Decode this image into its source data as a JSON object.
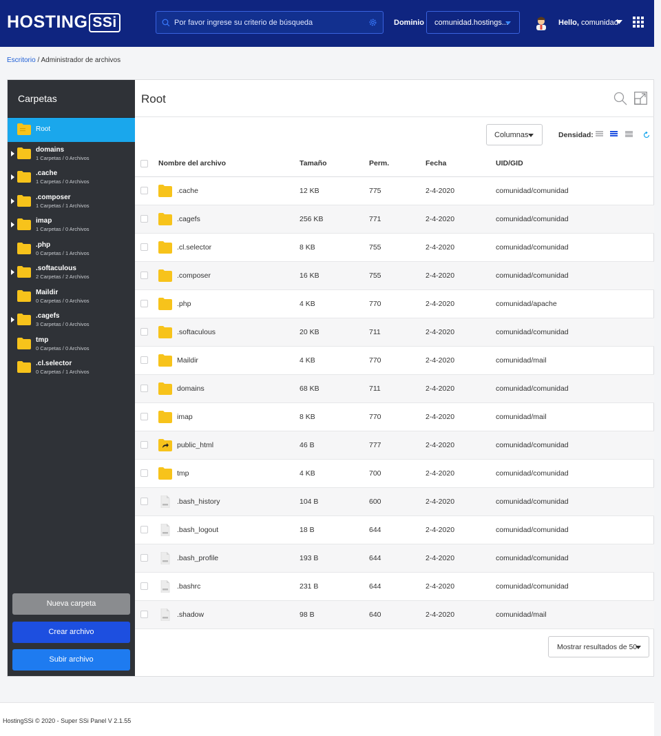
{
  "header": {
    "logo_text": "HOSTING",
    "logo_badge": "SSi",
    "search_placeholder": "Por favor ingrese su criterio de búsqueda",
    "domain_label": "Dominio",
    "domain_value": "comunidad.hostings...",
    "hello_prefix": "Hello,",
    "hello_user": "comunidad"
  },
  "breadcrumb": {
    "home": "Escritorio",
    "separator": " / ",
    "current": "Administrador de archivos"
  },
  "sidebar": {
    "title": "Carpetas",
    "root_label": "Root",
    "items": [
      {
        "name": "domains",
        "sub": "1 Carpetas / 0 Archivos",
        "expandable": true
      },
      {
        "name": ".cache",
        "sub": "1 Carpetas / 0 Archivos",
        "expandable": true
      },
      {
        "name": ".composer",
        "sub": "1 Carpetas / 1 Archivos",
        "expandable": true
      },
      {
        "name": "imap",
        "sub": "1 Carpetas / 0 Archivos",
        "expandable": true
      },
      {
        "name": ".php",
        "sub": "0 Carpetas / 1 Archivos",
        "expandable": false
      },
      {
        "name": ".softaculous",
        "sub": "2 Carpetas / 2 Archivos",
        "expandable": true
      },
      {
        "name": "Maildir",
        "sub": "0 Carpetas / 0 Archivos",
        "expandable": false
      },
      {
        "name": ".cagefs",
        "sub": "3 Carpetas / 0 Archivos",
        "expandable": true
      },
      {
        "name": "tmp",
        "sub": "0 Carpetas / 0 Archivos",
        "expandable": false
      },
      {
        "name": ".cl.selector",
        "sub": "0 Carpetas / 1 Archivos",
        "expandable": false
      }
    ],
    "buttons": {
      "new_folder": "Nueva carpeta",
      "create_file": "Crear archivo",
      "upload_file": "Subir archivo"
    }
  },
  "content": {
    "title": "Root",
    "columns_label": "Columnas",
    "density_label": "Densidad:",
    "headers": {
      "name": "Nombre del archivo",
      "size": "Tamaño",
      "perm": "Perm.",
      "date": "Fecha",
      "uid": "UID/GID"
    },
    "files": [
      {
        "name": ".cache",
        "size": "12 KB",
        "perm": "775",
        "date": "2-4-2020",
        "uid": "comunidad/comunidad",
        "type": "folder"
      },
      {
        "name": ".cagefs",
        "size": "256 KB",
        "perm": "771",
        "date": "2-4-2020",
        "uid": "comunidad/comunidad",
        "type": "folder"
      },
      {
        "name": ".cl.selector",
        "size": "8 KB",
        "perm": "755",
        "date": "2-4-2020",
        "uid": "comunidad/comunidad",
        "type": "folder"
      },
      {
        "name": ".composer",
        "size": "16 KB",
        "perm": "755",
        "date": "2-4-2020",
        "uid": "comunidad/comunidad",
        "type": "folder"
      },
      {
        "name": ".php",
        "size": "4 KB",
        "perm": "770",
        "date": "2-4-2020",
        "uid": "comunidad/apache",
        "type": "folder"
      },
      {
        "name": ".softaculous",
        "size": "20 KB",
        "perm": "711",
        "date": "2-4-2020",
        "uid": "comunidad/comunidad",
        "type": "folder"
      },
      {
        "name": "Maildir",
        "size": "4 KB",
        "perm": "770",
        "date": "2-4-2020",
        "uid": "comunidad/mail",
        "type": "folder"
      },
      {
        "name": "domains",
        "size": "68 KB",
        "perm": "711",
        "date": "2-4-2020",
        "uid": "comunidad/comunidad",
        "type": "folder"
      },
      {
        "name": "imap",
        "size": "8 KB",
        "perm": "770",
        "date": "2-4-2020",
        "uid": "comunidad/mail",
        "type": "folder"
      },
      {
        "name": "public_html",
        "size": "46 B",
        "perm": "777",
        "date": "2-4-2020",
        "uid": "comunidad/comunidad",
        "type": "link"
      },
      {
        "name": "tmp",
        "size": "4 KB",
        "perm": "700",
        "date": "2-4-2020",
        "uid": "comunidad/comunidad",
        "type": "folder"
      },
      {
        "name": ".bash_history",
        "size": "104 B",
        "perm": "600",
        "date": "2-4-2020",
        "uid": "comunidad/comunidad",
        "type": "file"
      },
      {
        "name": ".bash_logout",
        "size": "18 B",
        "perm": "644",
        "date": "2-4-2020",
        "uid": "comunidad/comunidad",
        "type": "file"
      },
      {
        "name": ".bash_profile",
        "size": "193 B",
        "perm": "644",
        "date": "2-4-2020",
        "uid": "comunidad/comunidad",
        "type": "file"
      },
      {
        "name": ".bashrc",
        "size": "231 B",
        "perm": "644",
        "date": "2-4-2020",
        "uid": "comunidad/comunidad",
        "type": "file"
      },
      {
        "name": ".shadow",
        "size": "98 B",
        "perm": "640",
        "date": "2-4-2020",
        "uid": "comunidad/mail",
        "type": "file"
      }
    ],
    "results_label": "Mostrar resultados de 50"
  },
  "footer": {
    "text": "HostingSSi © 2020 - Super SSi Panel V 2.1.55"
  },
  "colors": {
    "header_bg": "#0f2580",
    "sidebar_bg": "#2f3237",
    "active_folder": "#1aa7ec",
    "primary_button": "#1d4fe0",
    "folder_yellow": "#f7c31b"
  },
  "icons": {
    "search": "search-icon",
    "settings": "gear-icon",
    "apps": "grid-icon",
    "folder": "folder-icon",
    "file": "file-icon",
    "link": "folder-link-icon",
    "expand": "expand-icon",
    "refresh": "refresh-icon"
  }
}
